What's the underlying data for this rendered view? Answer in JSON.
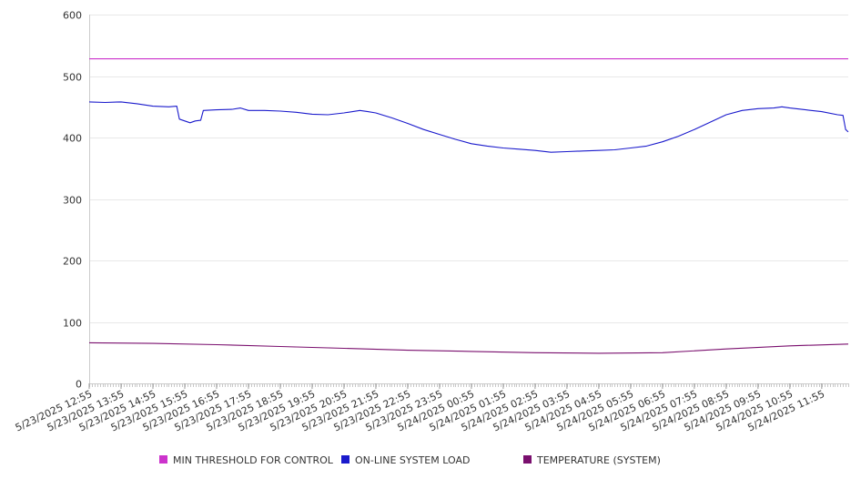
{
  "chart_data": {
    "type": "line",
    "title": "",
    "xlabel": "",
    "ylabel": "",
    "ylim": [
      0,
      600
    ],
    "yticks": [
      0,
      100,
      200,
      300,
      400,
      500,
      600
    ],
    "xlim": [
      "5/23/2025 12:55",
      "5/24/2025 12:45"
    ],
    "x_tick_labels": [
      "5/23/2025 12:55",
      "5/23/2025 13:55",
      "5/23/2025 14:55",
      "5/23/2025 15:55",
      "5/23/2025 16:55",
      "5/23/2025 17:55",
      "5/23/2025 18:55",
      "5/23/2025 19:55",
      "5/23/2025 20:55",
      "5/23/2025 21:55",
      "5/23/2025 22:55",
      "5/23/2025 23:55",
      "5/24/2025 00:55",
      "5/24/2025 01:55",
      "5/24/2025 02:55",
      "5/24/2025 03:55",
      "5/24/2025 04:55",
      "5/24/2025 05:55",
      "5/24/2025 06:55",
      "5/24/2025 07:55",
      "5/24/2025 08:55",
      "5/24/2025 09:55",
      "5/24/2025 10:55",
      "5/24/2025 11:55"
    ],
    "grid": "horizontal",
    "legend_position": "bottom",
    "series": [
      {
        "name": "MIN THRESHOLD FOR CONTROL",
        "color": "#cc33cc",
        "points": [
          [
            "5/23/2025 12:55",
            528
          ],
          [
            "5/24/2025 12:45",
            528
          ]
        ]
      },
      {
        "name": "ON-LINE SYSTEM LOAD",
        "color": "#1a1acc",
        "points": [
          [
            "5/23/2025 12:55",
            458
          ],
          [
            "5/23/2025 13:25",
            457
          ],
          [
            "5/23/2025 13:55",
            458
          ],
          [
            "5/23/2025 14:25",
            455
          ],
          [
            "5/23/2025 14:55",
            451
          ],
          [
            "5/23/2025 15:25",
            450
          ],
          [
            "5/23/2025 15:40",
            451
          ],
          [
            "5/23/2025 15:45",
            430
          ],
          [
            "5/23/2025 16:05",
            424
          ],
          [
            "5/23/2025 16:15",
            427
          ],
          [
            "5/23/2025 16:25",
            428
          ],
          [
            "5/23/2025 16:30",
            444
          ],
          [
            "5/23/2025 16:55",
            445
          ],
          [
            "5/23/2025 17:25",
            446
          ],
          [
            "5/23/2025 17:40",
            448
          ],
          [
            "5/23/2025 17:55",
            444
          ],
          [
            "5/23/2025 18:25",
            444
          ],
          [
            "5/23/2025 18:55",
            443
          ],
          [
            "5/23/2025 19:25",
            441
          ],
          [
            "5/23/2025 19:55",
            438
          ],
          [
            "5/23/2025 20:25",
            437
          ],
          [
            "5/23/2025 20:55",
            440
          ],
          [
            "5/23/2025 21:25",
            444
          ],
          [
            "5/23/2025 21:40",
            442
          ],
          [
            "5/23/2025 21:55",
            440
          ],
          [
            "5/23/2025 22:25",
            432
          ],
          [
            "5/23/2025 22:55",
            423
          ],
          [
            "5/23/2025 23:25",
            413
          ],
          [
            "5/23/2025 23:55",
            405
          ],
          [
            "5/24/2025 00:25",
            397
          ],
          [
            "5/24/2025 00:55",
            390
          ],
          [
            "5/24/2025 01:25",
            386
          ],
          [
            "5/24/2025 01:55",
            383
          ],
          [
            "5/24/2025 02:25",
            381
          ],
          [
            "5/24/2025 02:55",
            379
          ],
          [
            "5/24/2025 03:25",
            376
          ],
          [
            "5/24/2025 03:55",
            377
          ],
          [
            "5/24/2025 04:25",
            378
          ],
          [
            "5/24/2025 04:55",
            379
          ],
          [
            "5/24/2025 05:25",
            380
          ],
          [
            "5/24/2025 05:55",
            383
          ],
          [
            "5/24/2025 06:25",
            386
          ],
          [
            "5/24/2025 06:55",
            393
          ],
          [
            "5/24/2025 07:25",
            402
          ],
          [
            "5/24/2025 07:55",
            413
          ],
          [
            "5/24/2025 08:25",
            425
          ],
          [
            "5/24/2025 08:55",
            437
          ],
          [
            "5/24/2025 09:25",
            444
          ],
          [
            "5/24/2025 09:55",
            447
          ],
          [
            "5/24/2025 10:25",
            448
          ],
          [
            "5/24/2025 10:40",
            450
          ],
          [
            "5/24/2025 10:55",
            448
          ],
          [
            "5/24/2025 11:25",
            445
          ],
          [
            "5/24/2025 11:55",
            442
          ],
          [
            "5/24/2025 12:25",
            437
          ],
          [
            "5/24/2025 12:35",
            436
          ],
          [
            "5/24/2025 12:40",
            413
          ],
          [
            "5/24/2025 12:45",
            409
          ]
        ]
      },
      {
        "name": "TEMPERATURE (SYSTEM)",
        "color": "#7a0f6e",
        "points": [
          [
            "5/23/2025 12:55",
            66
          ],
          [
            "5/23/2025 14:55",
            65
          ],
          [
            "5/23/2025 16:55",
            63
          ],
          [
            "5/23/2025 18:55",
            60
          ],
          [
            "5/23/2025 20:55",
            57
          ],
          [
            "5/23/2025 22:55",
            54
          ],
          [
            "5/24/2025 00:55",
            52
          ],
          [
            "5/24/2025 02:55",
            50
          ],
          [
            "5/24/2025 04:55",
            49
          ],
          [
            "5/24/2025 06:55",
            50
          ],
          [
            "5/24/2025 08:55",
            56
          ],
          [
            "5/24/2025 10:55",
            61
          ],
          [
            "5/24/2025 12:45",
            64
          ]
        ]
      }
    ]
  }
}
